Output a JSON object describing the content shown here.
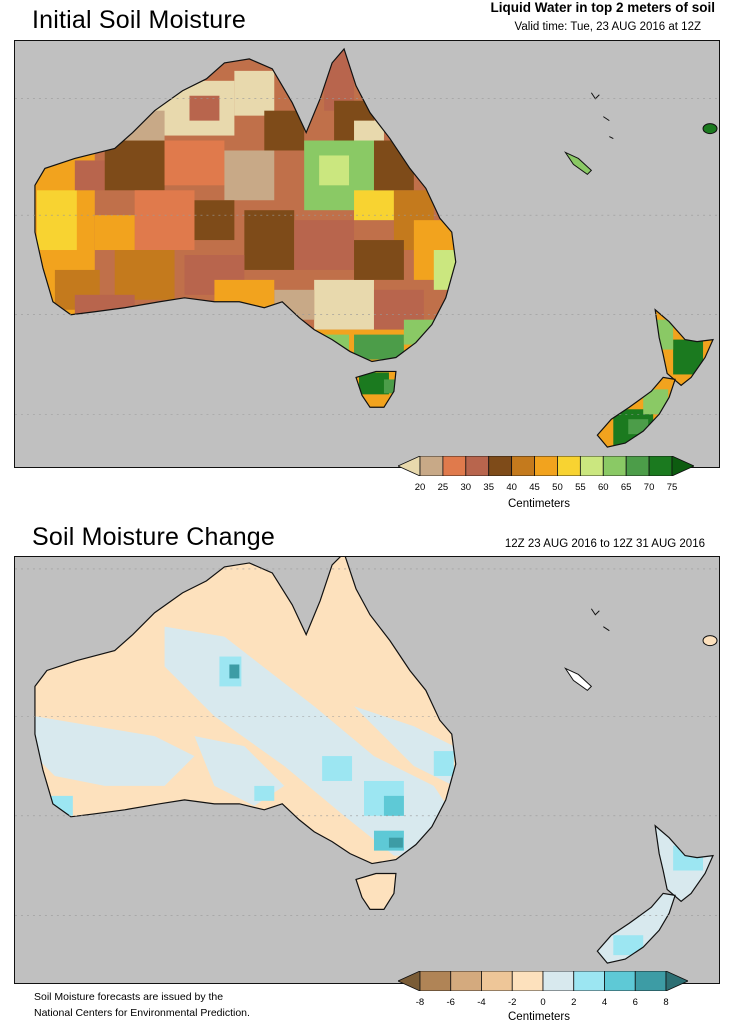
{
  "panel1": {
    "title": "Initial Soil Moisture",
    "subtitle": "Liquid Water in top 2 meters of soil",
    "valid_time": "Valid time: Tue, 23 AUG 2016 at 12Z",
    "colorbar": {
      "labels": [
        "20",
        "25",
        "30",
        "35",
        "40",
        "45",
        "50",
        "55",
        "60",
        "65",
        "70",
        "75"
      ],
      "colors": [
        "#e8d9ad",
        "#c8a987",
        "#e07a4c",
        "#b8654d",
        "#7e4b19",
        "#c47a1d",
        "#f2a31e",
        "#f8d331",
        "#cbe77f",
        "#8ac965",
        "#4c9d49",
        "#1b7a1f",
        "#0d5c10"
      ],
      "unit": "Centimeters"
    }
  },
  "panel2": {
    "title": "Soil Moisture Change",
    "period": "12Z 23 AUG 2016 to 12Z 31 AUG 2016",
    "colorbar": {
      "labels": [
        "-8",
        "-6",
        "-4",
        "-2",
        "0",
        "2",
        "4",
        "6",
        "8"
      ],
      "colors": [
        "#7a5c36",
        "#b08456",
        "#d4aa7e",
        "#eec698",
        "#fde1bd",
        "#d8e9ee",
        "#9ce6f2",
        "#5ec9d6",
        "#3d9ca5",
        "#2d6f73"
      ],
      "unit": "Centimeters"
    }
  },
  "footnote": {
    "line1": "Soil Moisture forecasts are issued by the",
    "line2": "National Centers for Environmental Prediction."
  }
}
